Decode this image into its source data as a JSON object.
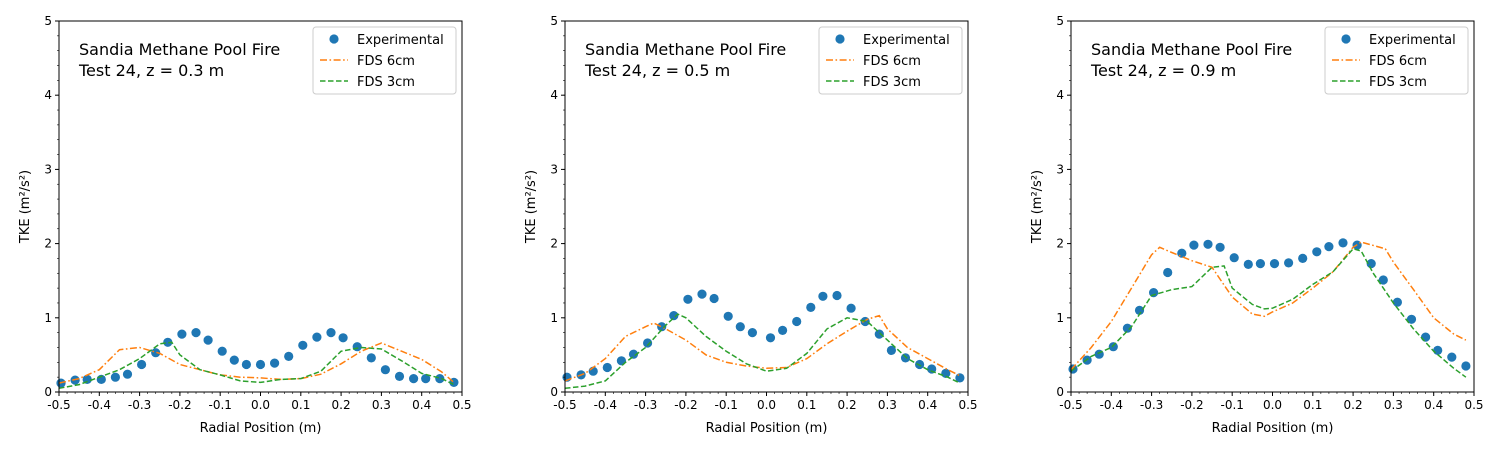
{
  "colors": {
    "experimental": "#1f77b4",
    "fds6": "#ff7f0e",
    "fds3": "#2ca02c"
  },
  "chart_data": [
    {
      "type": "line",
      "title_lines": [
        "Sandia Methane Pool Fire",
        "Test 24, z = 0.3 m"
      ],
      "xlabel": "Radial Position (m)",
      "ylabel": "TKE (m²/s²)",
      "xlim": [
        -0.5,
        0.5
      ],
      "ylim": [
        0,
        5
      ],
      "xticks": [
        "-0.5",
        "-0.4",
        "-0.3",
        "-0.2",
        "-0.1",
        "0.0",
        "0.1",
        "0.2",
        "0.3",
        "0.4",
        "0.5"
      ],
      "yticks": [
        "0",
        "1",
        "2",
        "3",
        "4",
        "5"
      ],
      "legend_position": "upper right",
      "series": [
        {
          "name": "Experimental",
          "style": "markers",
          "x": [
            -0.495,
            -0.46,
            -0.43,
            -0.395,
            -0.36,
            -0.33,
            -0.295,
            -0.26,
            -0.23,
            -0.195,
            -0.16,
            -0.13,
            -0.095,
            -0.065,
            -0.035,
            0.0,
            0.035,
            0.07,
            0.105,
            0.14,
            0.175,
            0.205,
            0.24,
            0.275,
            0.31,
            0.345,
            0.38,
            0.41,
            0.445,
            0.48
          ],
          "y": [
            0.12,
            0.16,
            0.17,
            0.17,
            0.2,
            0.24,
            0.37,
            0.53,
            0.67,
            0.78,
            0.8,
            0.7,
            0.55,
            0.43,
            0.37,
            0.37,
            0.39,
            0.48,
            0.63,
            0.74,
            0.8,
            0.73,
            0.61,
            0.46,
            0.3,
            0.21,
            0.18,
            0.18,
            0.18,
            0.13
          ]
        },
        {
          "name": "FDS 6cm",
          "style": "dashdot",
          "x": [
            -0.5,
            -0.45,
            -0.4,
            -0.35,
            -0.3,
            -0.25,
            -0.2,
            -0.15,
            -0.1,
            -0.05,
            0.0,
            0.05,
            0.1,
            0.15,
            0.2,
            0.25,
            0.3,
            0.35,
            0.4,
            0.45,
            0.48
          ],
          "y": [
            0.12,
            0.18,
            0.3,
            0.57,
            0.6,
            0.52,
            0.37,
            0.3,
            0.23,
            0.2,
            0.19,
            0.17,
            0.18,
            0.24,
            0.38,
            0.55,
            0.66,
            0.55,
            0.44,
            0.27,
            0.13
          ]
        },
        {
          "name": "FDS 3cm",
          "style": "dashed",
          "x": [
            -0.5,
            -0.45,
            -0.4,
            -0.35,
            -0.3,
            -0.25,
            -0.22,
            -0.2,
            -0.15,
            -0.1,
            -0.05,
            0.0,
            0.05,
            0.1,
            0.15,
            0.2,
            0.25,
            0.3,
            0.35,
            0.4,
            0.45,
            0.48
          ],
          "y": [
            0.05,
            0.1,
            0.2,
            0.3,
            0.45,
            0.65,
            0.67,
            0.5,
            0.3,
            0.23,
            0.15,
            0.13,
            0.17,
            0.18,
            0.28,
            0.55,
            0.6,
            0.58,
            0.42,
            0.25,
            0.18,
            0.1
          ]
        }
      ]
    },
    {
      "type": "line",
      "title_lines": [
        "Sandia Methane Pool Fire",
        "Test 24, z = 0.5 m"
      ],
      "xlabel": "Radial Position (m)",
      "ylabel": "TKE (m²/s²)",
      "xlim": [
        -0.5,
        0.5
      ],
      "ylim": [
        0,
        5
      ],
      "xticks": [
        "-0.5",
        "-0.4",
        "-0.3",
        "-0.2",
        "-0.1",
        "0.0",
        "0.1",
        "0.2",
        "0.3",
        "0.4",
        "0.5"
      ],
      "yticks": [
        "0",
        "1",
        "2",
        "3",
        "4",
        "5"
      ],
      "legend_position": "upper right",
      "series": [
        {
          "name": "Experimental",
          "style": "markers",
          "x": [
            -0.495,
            -0.46,
            -0.43,
            -0.395,
            -0.36,
            -0.33,
            -0.295,
            -0.26,
            -0.23,
            -0.195,
            -0.16,
            -0.13,
            -0.095,
            -0.065,
            -0.035,
            0.01,
            0.04,
            0.075,
            0.11,
            0.14,
            0.175,
            0.21,
            0.245,
            0.28,
            0.31,
            0.345,
            0.38,
            0.41,
            0.445,
            0.48
          ],
          "y": [
            0.2,
            0.23,
            0.28,
            0.33,
            0.42,
            0.51,
            0.66,
            0.88,
            1.03,
            1.25,
            1.32,
            1.26,
            1.02,
            0.88,
            0.8,
            0.73,
            0.83,
            0.95,
            1.14,
            1.29,
            1.3,
            1.13,
            0.95,
            0.78,
            0.56,
            0.46,
            0.37,
            0.31,
            0.25,
            0.19
          ]
        },
        {
          "name": "FDS 6cm",
          "style": "dashdot",
          "x": [
            -0.5,
            -0.45,
            -0.4,
            -0.35,
            -0.3,
            -0.28,
            -0.25,
            -0.2,
            -0.15,
            -0.1,
            -0.05,
            0.0,
            0.05,
            0.1,
            0.15,
            0.2,
            0.25,
            0.28,
            0.3,
            0.35,
            0.4,
            0.45,
            0.48
          ],
          "y": [
            0.15,
            0.25,
            0.45,
            0.75,
            0.88,
            0.93,
            0.85,
            0.7,
            0.5,
            0.4,
            0.35,
            0.32,
            0.33,
            0.45,
            0.65,
            0.82,
            0.98,
            1.03,
            0.85,
            0.6,
            0.45,
            0.3,
            0.22
          ]
        },
        {
          "name": "FDS 3cm",
          "style": "dashed",
          "x": [
            -0.5,
            -0.45,
            -0.4,
            -0.35,
            -0.3,
            -0.25,
            -0.22,
            -0.2,
            -0.15,
            -0.1,
            -0.05,
            0.0,
            0.05,
            0.1,
            0.15,
            0.2,
            0.25,
            0.3,
            0.35,
            0.4,
            0.45,
            0.48
          ],
          "y": [
            0.05,
            0.08,
            0.15,
            0.4,
            0.6,
            0.9,
            1.05,
            1.0,
            0.75,
            0.55,
            0.38,
            0.28,
            0.32,
            0.52,
            0.85,
            1.0,
            0.95,
            0.7,
            0.45,
            0.3,
            0.2,
            0.12
          ]
        }
      ]
    },
    {
      "type": "line",
      "title_lines": [
        "Sandia Methane Pool Fire",
        "Test 24, z = 0.9 m"
      ],
      "xlabel": "Radial Position (m)",
      "ylabel": "TKE (m²/s²)",
      "xlim": [
        -0.5,
        0.5
      ],
      "ylim": [
        0,
        5
      ],
      "xticks": [
        "-0.5",
        "-0.4",
        "-0.3",
        "-0.2",
        "-0.1",
        "0.0",
        "0.1",
        "0.2",
        "0.3",
        "0.4",
        "0.5"
      ],
      "yticks": [
        "0",
        "1",
        "2",
        "3",
        "4",
        "5"
      ],
      "legend_position": "upper right",
      "series": [
        {
          "name": "Experimental",
          "style": "markers",
          "x": [
            -0.495,
            -0.46,
            -0.43,
            -0.395,
            -0.36,
            -0.33,
            -0.295,
            -0.26,
            -0.225,
            -0.195,
            -0.16,
            -0.13,
            -0.095,
            -0.06,
            -0.03,
            0.005,
            0.04,
            0.075,
            0.11,
            0.14,
            0.175,
            0.21,
            0.245,
            0.275,
            0.31,
            0.345,
            0.38,
            0.41,
            0.445,
            0.48
          ],
          "y": [
            0.31,
            0.43,
            0.51,
            0.61,
            0.86,
            1.1,
            1.34,
            1.61,
            1.87,
            1.98,
            1.99,
            1.95,
            1.81,
            1.72,
            1.73,
            1.73,
            1.74,
            1.8,
            1.89,
            1.96,
            2.01,
            1.98,
            1.73,
            1.51,
            1.21,
            0.98,
            0.74,
            0.56,
            0.47,
            0.35
          ]
        },
        {
          "name": "FDS 6cm",
          "style": "dashdot",
          "x": [
            -0.5,
            -0.45,
            -0.4,
            -0.35,
            -0.3,
            -0.28,
            -0.25,
            -0.2,
            -0.15,
            -0.1,
            -0.05,
            -0.02,
            0.0,
            0.05,
            0.1,
            0.15,
            0.2,
            0.22,
            0.28,
            0.3,
            0.35,
            0.4,
            0.45,
            0.48
          ],
          "y": [
            0.3,
            0.6,
            0.95,
            1.4,
            1.85,
            1.95,
            1.88,
            1.77,
            1.68,
            1.28,
            1.05,
            1.02,
            1.08,
            1.2,
            1.4,
            1.62,
            1.95,
            2.02,
            1.93,
            1.75,
            1.38,
            1.0,
            0.78,
            0.7
          ]
        },
        {
          "name": "FDS 3cm",
          "style": "dashed",
          "x": [
            -0.5,
            -0.45,
            -0.4,
            -0.35,
            -0.3,
            -0.25,
            -0.2,
            -0.15,
            -0.12,
            -0.1,
            -0.05,
            -0.02,
            0.0,
            0.05,
            0.1,
            0.15,
            0.2,
            0.22,
            0.25,
            0.3,
            0.35,
            0.4,
            0.45,
            0.48
          ],
          "y": [
            0.28,
            0.48,
            0.6,
            0.88,
            1.3,
            1.38,
            1.42,
            1.68,
            1.7,
            1.4,
            1.18,
            1.12,
            1.13,
            1.25,
            1.45,
            1.62,
            1.93,
            1.9,
            1.6,
            1.2,
            0.85,
            0.55,
            0.32,
            0.2
          ]
        }
      ]
    }
  ]
}
